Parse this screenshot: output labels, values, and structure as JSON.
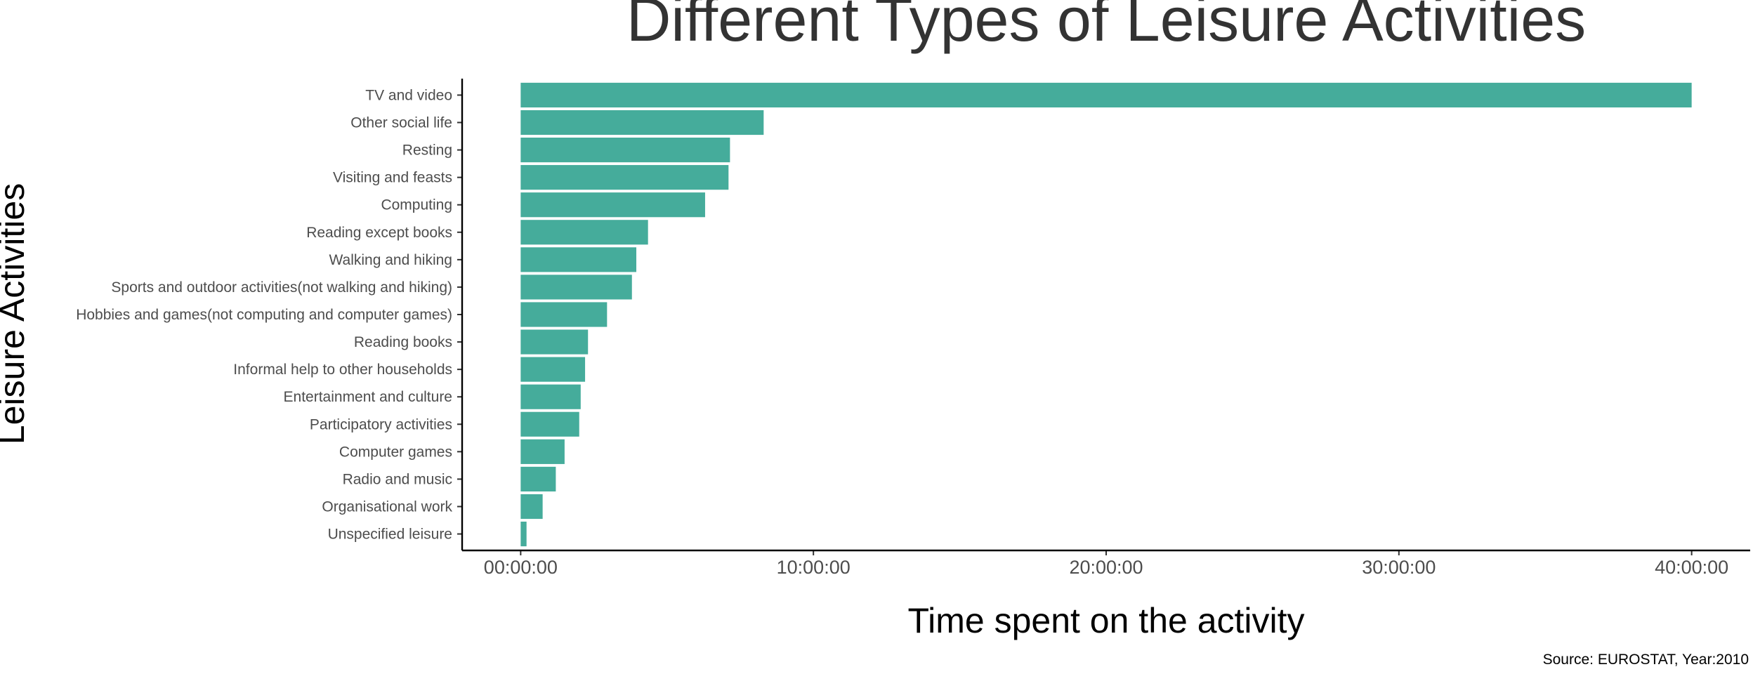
{
  "chart_data": {
    "type": "bar",
    "orientation": "horizontal",
    "title": "Different Types of Leisure Activities",
    "xlabel": "Time spent on the activity",
    "ylabel": "Leisure Activities",
    "caption": "Source: EUROSTAT, Year:2010",
    "xlim_hours": [
      -2,
      42
    ],
    "x_ticks": [
      {
        "hours": 0,
        "label": "00:00:00"
      },
      {
        "hours": 10,
        "label": "10:00:00"
      },
      {
        "hours": 20,
        "label": "20:00:00"
      },
      {
        "hours": 30,
        "label": "30:00:00"
      },
      {
        "hours": 40,
        "label": "40:00:00"
      }
    ],
    "value_unit": "hours",
    "categories": [
      "TV and video",
      "Other social life",
      "Resting",
      "Visiting and feasts",
      "Computing",
      "Reading except books",
      "Walking and hiking",
      "Sports and outdoor activities(not walking and hiking)",
      "Hobbies and games(not computing and computer games)",
      "Reading books",
      "Informal help to other households",
      "Entertainment and culture",
      "Participatory activities",
      "Computer games",
      "Radio and music",
      "Organisational work",
      "Unspecified leisure"
    ],
    "values": [
      40.0,
      8.3,
      7.15,
      7.1,
      6.3,
      4.35,
      3.95,
      3.8,
      2.95,
      2.3,
      2.2,
      2.05,
      2.0,
      1.5,
      1.2,
      0.75,
      0.2
    ],
    "bar_color": "#45ac9b",
    "grid": false,
    "legend": "none"
  }
}
